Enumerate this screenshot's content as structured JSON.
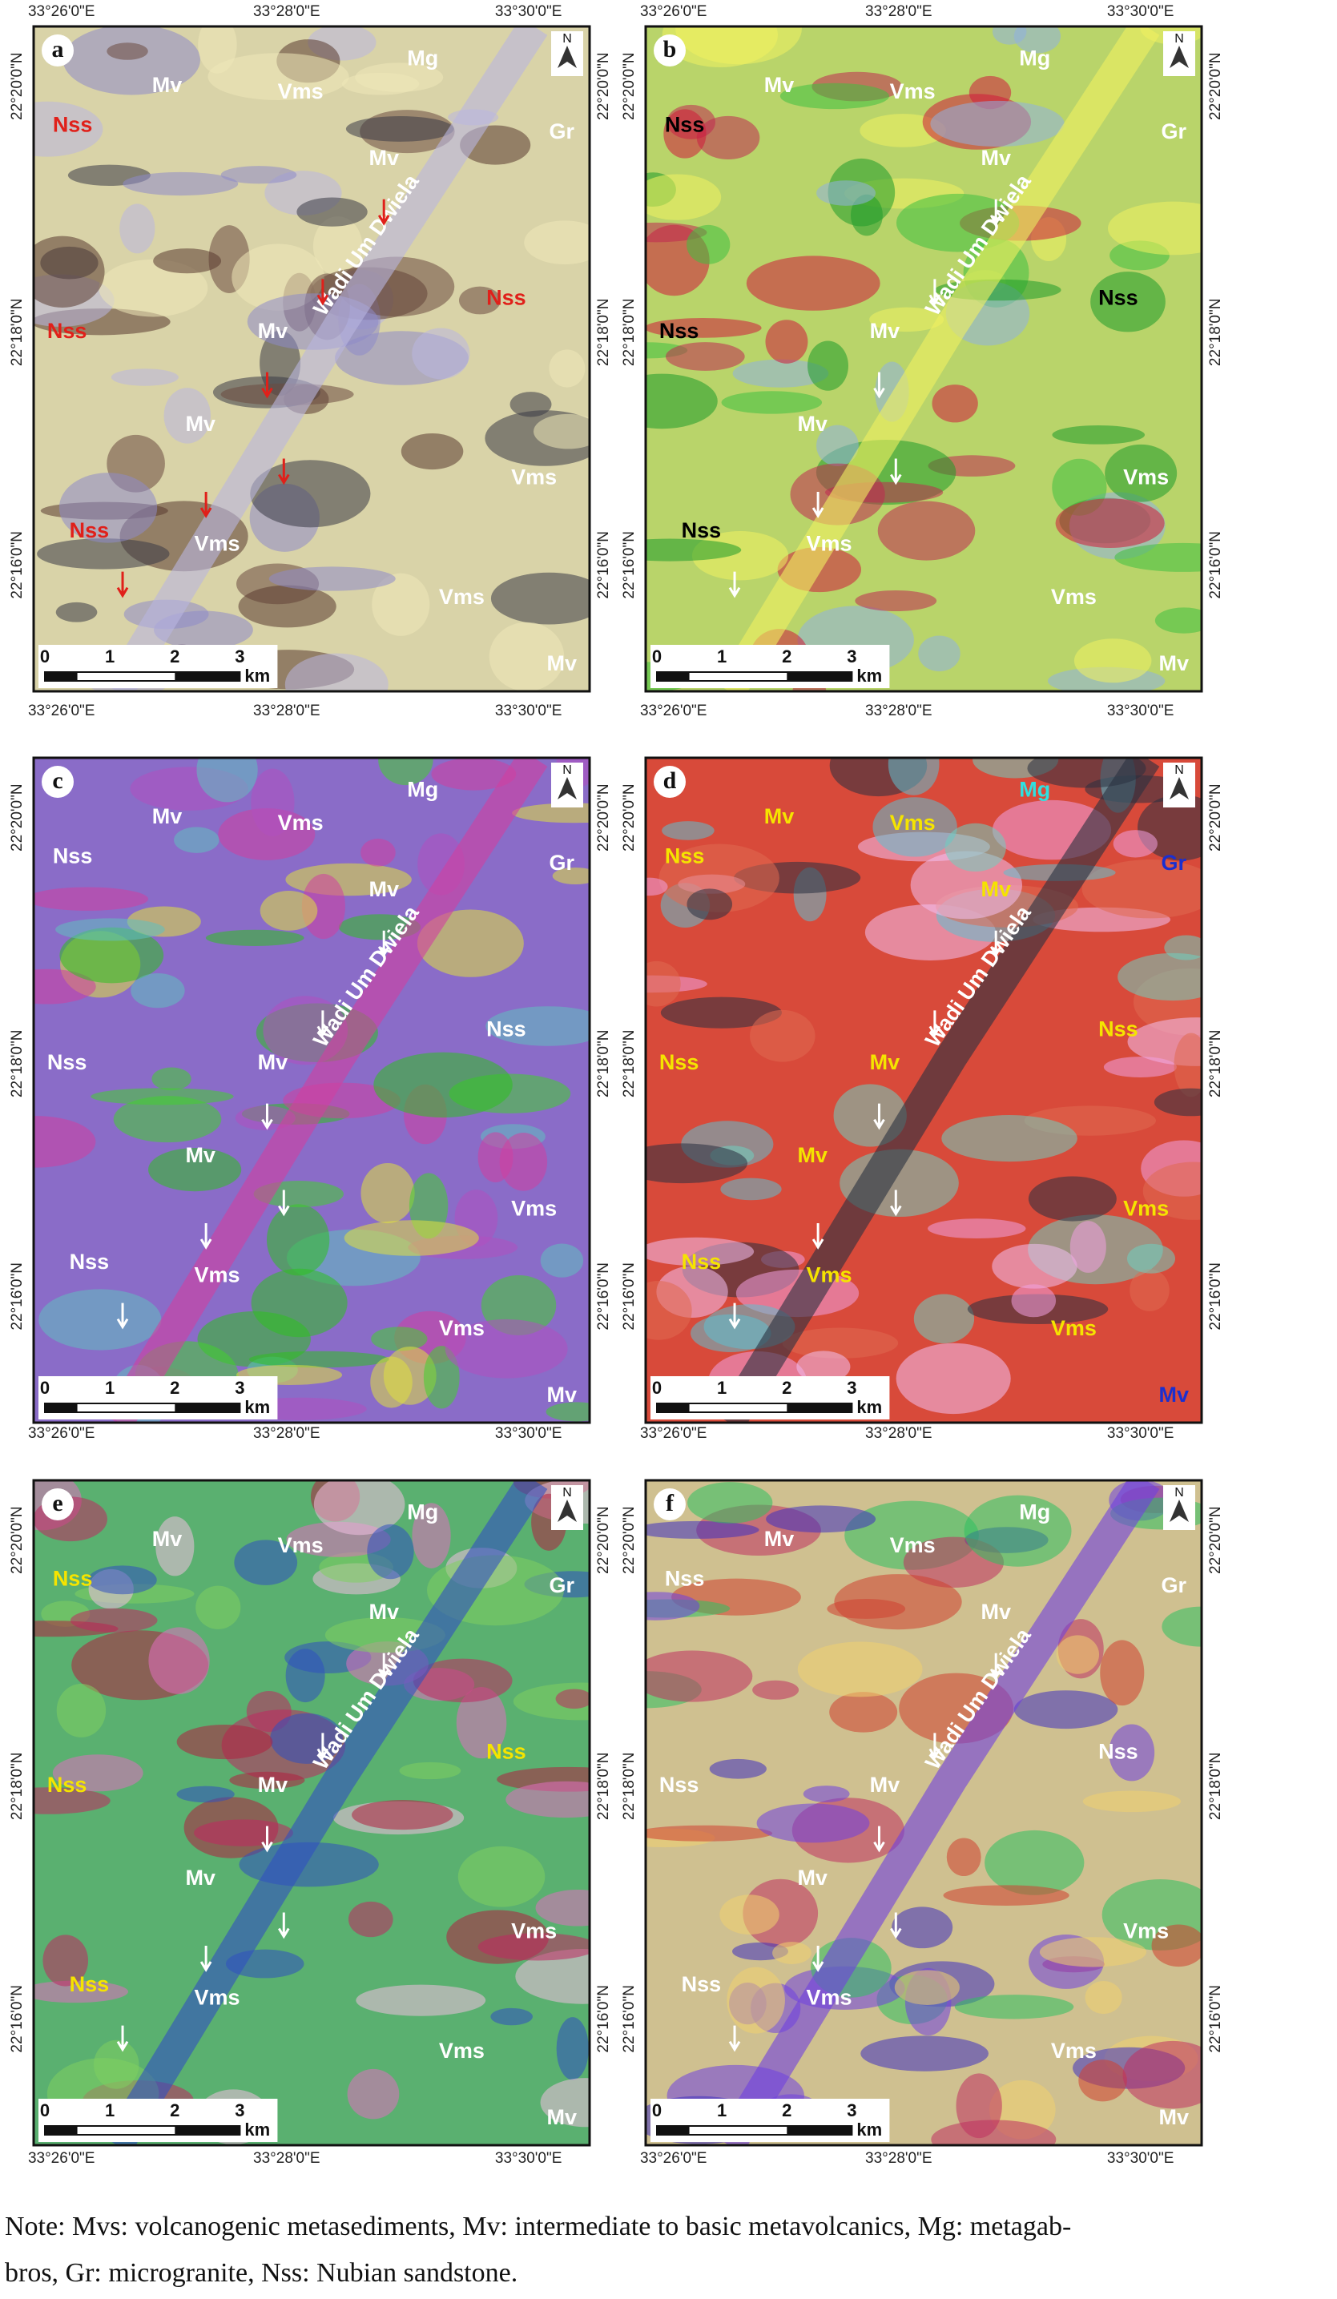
{
  "x_axis_labels": [
    "33°26'0\"E",
    "33°28'0\"E",
    "33°30'0\"E"
  ],
  "y_axis_labels": [
    "22°20'0\"N",
    "22°18'0\"N",
    "22°16'0\"N"
  ],
  "scale_bar": {
    "ticks": [
      "0",
      "1",
      "2",
      "3"
    ],
    "unit": "km"
  },
  "north": "N",
  "panels": [
    {
      "letter": "a",
      "arrow_color": "#e0201a",
      "labels": [
        "Mv",
        "Vms",
        "Mg",
        "Mv",
        "Gr",
        "Nss",
        "Nss",
        "Nss",
        "Mv",
        "Mv",
        "Nss",
        "Vms",
        "Vms",
        "Vms",
        "Mv",
        "Wadi Um Dwiela"
      ],
      "label_colors": [
        "#ffffff",
        "#ffffff",
        "#ffffff",
        "#ffffff",
        "#ffffff",
        "#e0201a",
        "#e0201a",
        "#e0201a",
        "#ffffff",
        "#ffffff",
        "#e0201a",
        "#ffffff",
        "#ffffff",
        "#ffffff",
        "#ffffff",
        "#ffffff"
      ]
    },
    {
      "letter": "b",
      "arrow_color": "#ffffff",
      "labels": [
        "Mv",
        "Vms",
        "Mg",
        "Mv",
        "Gr",
        "Nss",
        "Nss",
        "Nss",
        "Mv",
        "Mv",
        "Nss",
        "Vms",
        "Vms",
        "Vms",
        "Mv",
        "Wadi Um Dwiela"
      ],
      "label_colors": [
        "#ffffff",
        "#ffffff",
        "#ffffff",
        "#ffffff",
        "#ffffff",
        "#000000",
        "#000000",
        "#000000",
        "#ffffff",
        "#ffffff",
        "#000000",
        "#ffffff",
        "#ffffff",
        "#ffffff",
        "#ffffff",
        "#ffffff"
      ]
    },
    {
      "letter": "c",
      "arrow_color": "#ffffff",
      "labels": [
        "Mv",
        "Vms",
        "Mg",
        "Mv",
        "Gr",
        "Nss",
        "Nss",
        "Nss",
        "Mv",
        "Mv",
        "Nss",
        "Vms",
        "Vms",
        "Vms",
        "Mv",
        "Wadi Um Dwiela"
      ],
      "label_colors": [
        "#ffffff",
        "#ffffff",
        "#ffffff",
        "#ffffff",
        "#ffffff",
        "#ffffff",
        "#ffffff",
        "#ffffff",
        "#ffffff",
        "#ffffff",
        "#ffffff",
        "#ffffff",
        "#ffffff",
        "#ffffff",
        "#ffffff",
        "#ffffff"
      ]
    },
    {
      "letter": "d",
      "arrow_color": "#ffffff",
      "labels": [
        "Mv",
        "Vms",
        "Mg",
        "Mv",
        "Gr",
        "Nss",
        "Nss",
        "Nss",
        "Mv",
        "Mv",
        "Nss",
        "Vms",
        "Vms",
        "Vms",
        "Mv",
        "Wadi Um Dwiela"
      ],
      "label_colors": [
        "#f5e400",
        "#f5e400",
        "#2fe0e0",
        "#f5e400",
        "#1a2fd0",
        "#f5e400",
        "#f5e400",
        "#f5e400",
        "#f5e400",
        "#f5e400",
        "#f5e400",
        "#f5e400",
        "#f5e400",
        "#f5e400",
        "#1a2fd0",
        "#ffffff"
      ]
    },
    {
      "letter": "e",
      "arrow_color": "#ffffff",
      "labels": [
        "Mv",
        "Vms",
        "Mg",
        "Mv",
        "Gr",
        "Nss",
        "Nss",
        "Nss",
        "Mv",
        "Mv",
        "Nss",
        "Vms",
        "Vms",
        "Vms",
        "Mv",
        "Wadi Um Dwiela"
      ],
      "label_colors": [
        "#ffffff",
        "#ffffff",
        "#ffffff",
        "#ffffff",
        "#ffffff",
        "#f5e400",
        "#f5e400",
        "#f5e400",
        "#ffffff",
        "#ffffff",
        "#f5e400",
        "#ffffff",
        "#ffffff",
        "#ffffff",
        "#ffffff",
        "#ffffff"
      ]
    },
    {
      "letter": "f",
      "arrow_color": "#ffffff",
      "labels": [
        "Mv",
        "Vms",
        "Mg",
        "Mv",
        "Gr",
        "Nss",
        "Nss",
        "Nss",
        "Mv",
        "Mv",
        "Nss",
        "Vms",
        "Vms",
        "Vms",
        "Mv",
        "Wadi Um Dwiela"
      ],
      "label_colors": [
        "#ffffff",
        "#ffffff",
        "#ffffff",
        "#ffffff",
        "#ffffff",
        "#ffffff",
        "#ffffff",
        "#ffffff",
        "#ffffff",
        "#ffffff",
        "#ffffff",
        "#ffffff",
        "#ffffff",
        "#ffffff",
        "#ffffff",
        "#ffffff"
      ]
    }
  ],
  "note": [
    "Note: Mvs: volcanogenic metasediments, Mv: intermediate to basic metavolcanics, Mg: metagab-",
    "bros, Gr: microgranite, Nss: Nubian sandstone."
  ]
}
